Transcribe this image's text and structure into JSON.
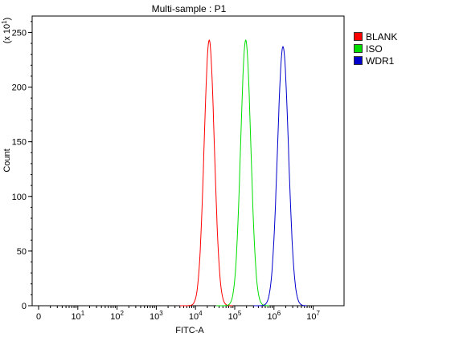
{
  "chart_data": {
    "type": "line",
    "title": "Multi-sample : P1",
    "xlabel": "FITC-A",
    "ylabel": "Count",
    "y_multiplier_label": "(x 10^1)",
    "x_scale": "biexponential-log",
    "x_tick_labels": [
      "0",
      "10^1",
      "10^2",
      "10^3",
      "10^4",
      "10^5",
      "10^6",
      "10^7"
    ],
    "y_tick_labels": [
      "0",
      "50",
      "100",
      "150",
      "200",
      "250"
    ],
    "ylim": [
      0,
      265
    ],
    "grid": false,
    "legend_position": "right",
    "series": [
      {
        "name": "BLANK",
        "color": "#ff0000",
        "peak_x_log10": 4.35,
        "peak_y": 243,
        "width_log10": 0.13
      },
      {
        "name": "ISO",
        "color": "#00dd00",
        "peak_x_log10": 5.28,
        "peak_y": 243,
        "width_log10": 0.13
      },
      {
        "name": "WDR1",
        "color": "#0000cc",
        "peak_x_log10": 6.23,
        "peak_y": 237,
        "width_log10": 0.14
      }
    ]
  }
}
